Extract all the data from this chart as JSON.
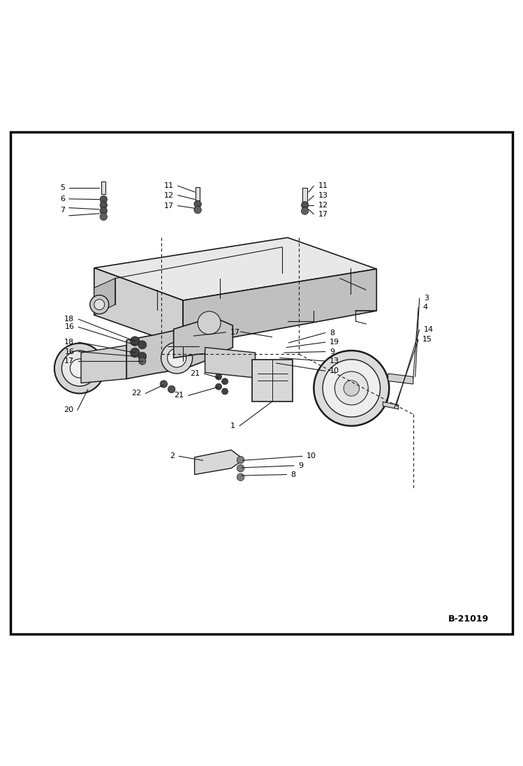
{
  "bg_color": "#ffffff",
  "border_color": "#000000",
  "line_color": "#1a1a1a",
  "text_color": "#000000",
  "fig_width": 7.49,
  "fig_height": 10.97,
  "dpi": 100,
  "watermark": "B-21019"
}
